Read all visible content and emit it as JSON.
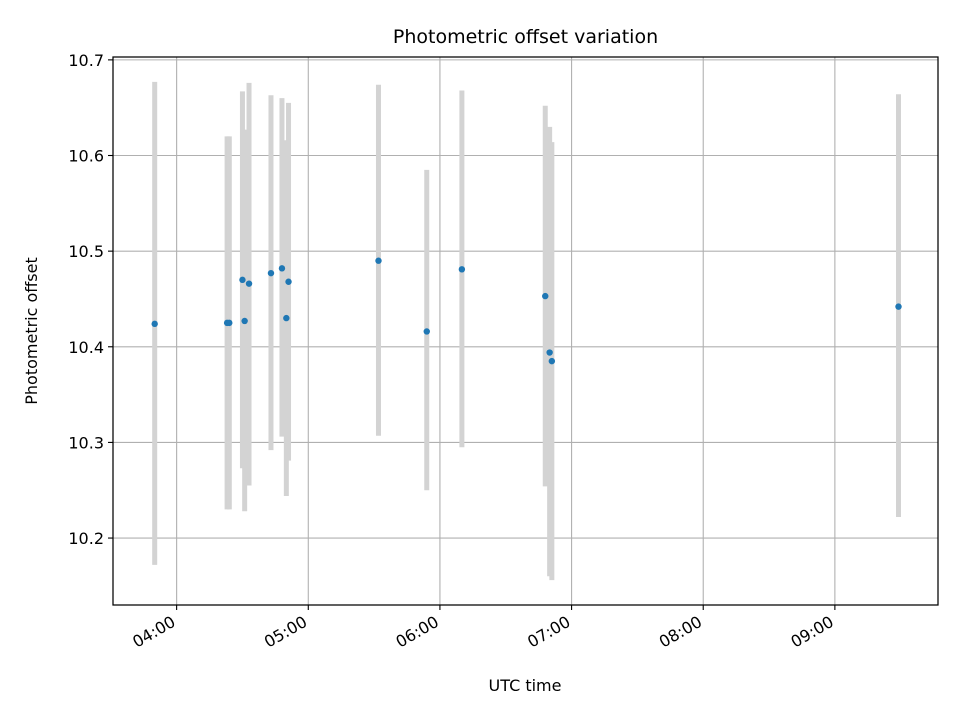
{
  "chart_data": {
    "type": "scatter",
    "title": "Photometric offset variation",
    "xlabel": "UTC time",
    "ylabel": "Photometric offset",
    "x_unit": "UTC time (HH:MM)",
    "xlim": [
      "03:31",
      "09:47"
    ],
    "ylim": [
      10.13,
      10.703
    ],
    "x_ticks": [
      "04:00",
      "05:00",
      "06:00",
      "07:00",
      "08:00",
      "09:00"
    ],
    "y_ticks": [
      10.2,
      10.3,
      10.4,
      10.5,
      10.6,
      10.7
    ],
    "y_tick_labels": [
      "10.2",
      "10.3",
      "10.4",
      "10.5",
      "10.6",
      "10.7"
    ],
    "grid": true,
    "legend": "none",
    "colors": {
      "point": "#1f77b4",
      "errorbar": "#d3d3d3",
      "grid": "#b0b0b0"
    },
    "series": [
      {
        "points": [
          {
            "x": "03:50",
            "y": 10.424,
            "ymin": 10.172,
            "ymax": 10.677
          },
          {
            "x": "04:23",
            "y": 10.425,
            "ymin": 10.23,
            "ymax": 10.62
          },
          {
            "x": "04:24",
            "y": 10.425,
            "ymin": 10.23,
            "ymax": 10.62
          },
          {
            "x": "04:30",
            "y": 10.47,
            "ymin": 10.273,
            "ymax": 10.667
          },
          {
            "x": "04:31",
            "y": 10.427,
            "ymin": 10.228,
            "ymax": 10.627
          },
          {
            "x": "04:33",
            "y": 10.466,
            "ymin": 10.255,
            "ymax": 10.676
          },
          {
            "x": "04:43",
            "y": 10.477,
            "ymin": 10.292,
            "ymax": 10.663
          },
          {
            "x": "04:48",
            "y": 10.482,
            "ymin": 10.306,
            "ymax": 10.66
          },
          {
            "x": "04:50",
            "y": 10.43,
            "ymin": 10.244,
            "ymax": 10.616
          },
          {
            "x": "04:51",
            "y": 10.468,
            "ymin": 10.281,
            "ymax": 10.655
          },
          {
            "x": "05:32",
            "y": 10.49,
            "ymin": 10.307,
            "ymax": 10.674
          },
          {
            "x": "05:54",
            "y": 10.416,
            "ymin": 10.25,
            "ymax": 10.585
          },
          {
            "x": "06:10",
            "y": 10.481,
            "ymin": 10.295,
            "ymax": 10.668
          },
          {
            "x": "06:48",
            "y": 10.453,
            "ymin": 10.254,
            "ymax": 10.652
          },
          {
            "x": "06:50",
            "y": 10.394,
            "ymin": 10.16,
            "ymax": 10.63
          },
          {
            "x": "06:51",
            "y": 10.385,
            "ymin": 10.156,
            "ymax": 10.614
          },
          {
            "x": "09:29",
            "y": 10.442,
            "ymin": 10.222,
            "ymax": 10.664
          }
        ]
      }
    ]
  }
}
